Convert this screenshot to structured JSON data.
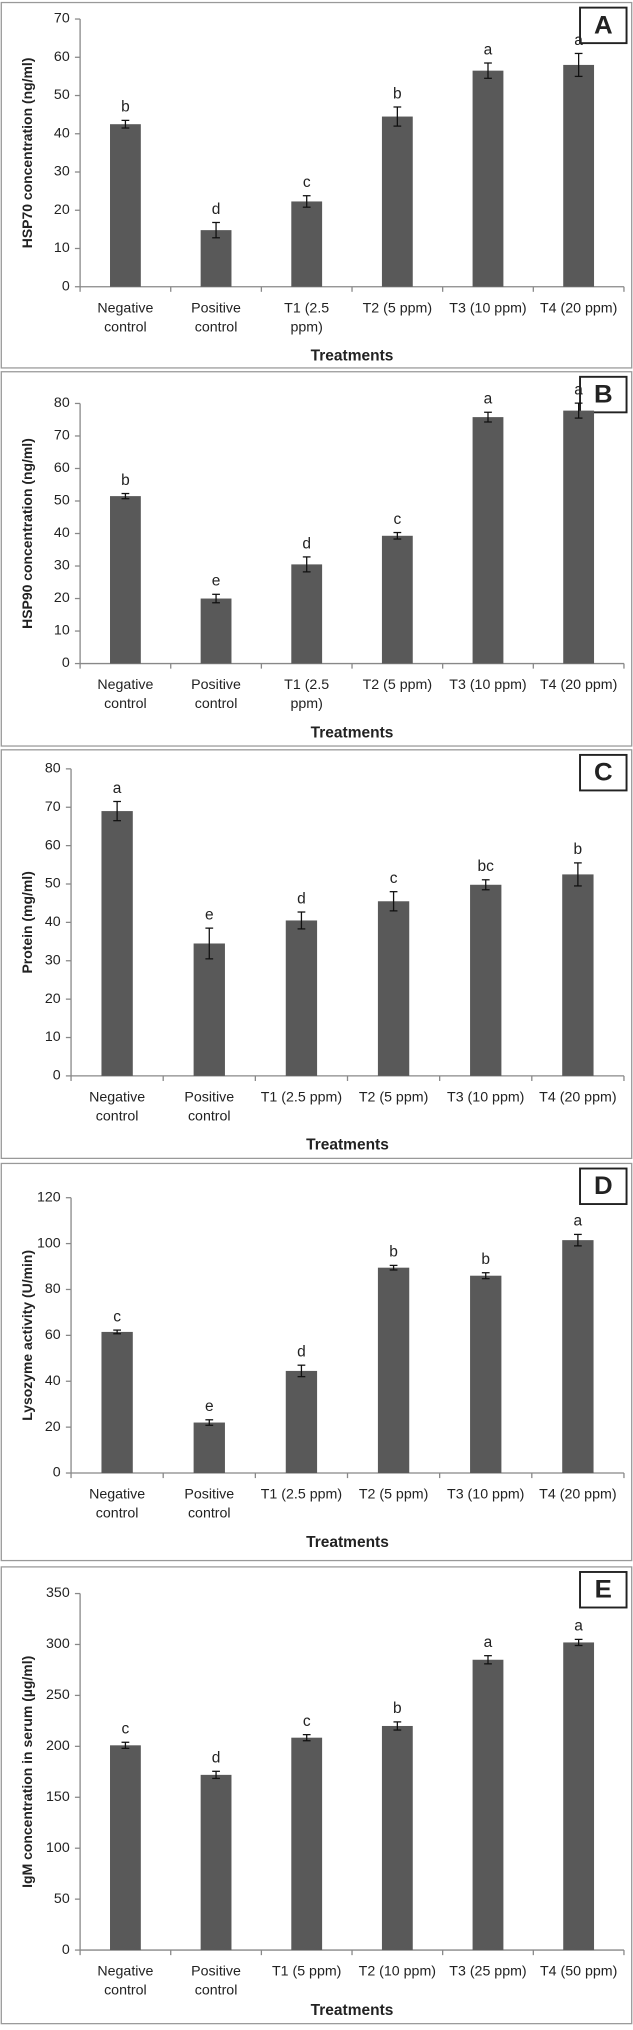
{
  "chart_data": [
    {
      "type": "bar",
      "panel": "A",
      "ylabel": "HSP70 concentration (ng/ml)",
      "xlabel": "Treatments",
      "color": "#595959",
      "categories": [
        "Negative\ncontrol",
        "Positive\ncontrol",
        "T1 (2.5\nppm)",
        "T2 (5 ppm)",
        "T3 (10 ppm)",
        "T4 (20 ppm)"
      ],
      "values": [
        42.5,
        14.8,
        22.3,
        44.5,
        56.5,
        58
      ],
      "errors": [
        1,
        2,
        1.5,
        2.5,
        2,
        3
      ],
      "significance": [
        "b",
        "d",
        "c",
        "b",
        "a",
        "a"
      ],
      "ylim": [
        0,
        70
      ],
      "yticks": [
        0,
        10,
        20,
        30,
        40,
        50,
        60,
        70
      ]
    },
    {
      "type": "bar",
      "panel": "B",
      "ylabel": "HSP90 concentration (ng/ml)",
      "xlabel": "Treatments",
      "color": "#595959",
      "categories": [
        "Negative\ncontrol",
        "Positive\ncontrol",
        "T1 (2.5\nppm)",
        "T2 (5 ppm)",
        "T3 (10 ppm)",
        "T4 (20 ppm)"
      ],
      "values": [
        51.5,
        20,
        30.5,
        39.3,
        75.8,
        77.8
      ],
      "errors": [
        0.8,
        1.3,
        2.3,
        1,
        1.5,
        2.3
      ],
      "significance": [
        "b",
        "e",
        "d",
        "c",
        "a",
        "a"
      ],
      "ylim": [
        0,
        80
      ],
      "yticks": [
        0,
        10,
        20,
        30,
        40,
        50,
        60,
        70,
        80
      ]
    },
    {
      "type": "bar",
      "panel": "C",
      "ylabel": "Protein (mg/ml)",
      "xlabel": "Treatments",
      "color": "#595959",
      "categories": [
        "Negative\ncontrol",
        "Positive\ncontrol",
        "T1 (2.5 ppm)",
        "T2 (5 ppm)",
        "T3 (10 ppm)",
        "T4 (20 ppm)"
      ],
      "values": [
        69,
        34.5,
        40.5,
        45.5,
        49.8,
        52.5
      ],
      "errors": [
        2.5,
        4,
        2.2,
        2.5,
        1.3,
        3
      ],
      "significance": [
        "a",
        "e",
        "d",
        "c",
        "bc",
        "b"
      ],
      "ylim": [
        0,
        80
      ],
      "yticks": [
        0,
        10,
        20,
        30,
        40,
        50,
        60,
        70,
        80
      ]
    },
    {
      "type": "bar",
      "panel": "D",
      "ylabel": "Lysozyme activity (U/min)",
      "xlabel": "Treatments",
      "color": "#595959",
      "categories": [
        "Negative\ncontrol",
        "Positive\ncontrol",
        "T1 (2.5 ppm)",
        "T2 (5 ppm)",
        "T3 (10 ppm)",
        "T4 (20 ppm)"
      ],
      "values": [
        61.5,
        22,
        44.5,
        89.5,
        86,
        101.5
      ],
      "errors": [
        0.8,
        1.2,
        2.5,
        1,
        1.3,
        2.5
      ],
      "significance": [
        "c",
        "e",
        "d",
        "b",
        "b",
        "a"
      ],
      "ylim": [
        0,
        120
      ],
      "yticks": [
        0,
        20,
        40,
        60,
        80,
        100,
        120
      ]
    },
    {
      "type": "bar",
      "panel": "E",
      "ylabel": "IgM concentration in serum (µg/ml)",
      "xlabel": "Treatments",
      "color": "#595959",
      "categories": [
        "Negative\ncontrol",
        "Positive\ncontrol",
        "T1 (5 ppm)",
        "T2 (10 ppm)",
        "T3 (25 ppm)",
        "T4 (50 ppm)"
      ],
      "values": [
        201,
        172,
        208.5,
        220,
        285,
        302
      ],
      "errors": [
        3,
        3.5,
        3,
        4,
        4,
        3
      ],
      "significance": [
        "c",
        "d",
        "c",
        "b",
        "a",
        "a"
      ],
      "ylim": [
        0,
        350
      ],
      "yticks": [
        0,
        50,
        100,
        150,
        200,
        250,
        300,
        350
      ]
    }
  ]
}
